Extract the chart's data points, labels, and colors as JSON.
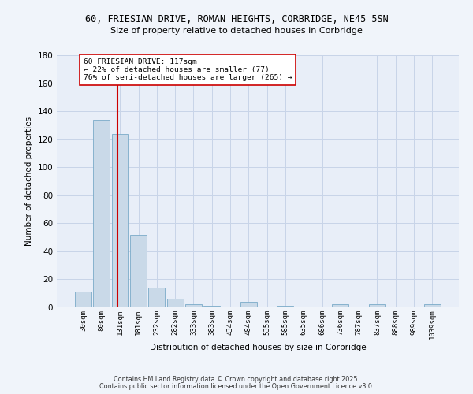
{
  "title_line1": "60, FRIESIAN DRIVE, ROMAN HEIGHTS, CORBRIDGE, NE45 5SN",
  "title_line2": "Size of property relative to detached houses in Corbridge",
  "xlabel": "Distribution of detached houses by size in Corbridge",
  "ylabel": "Number of detached properties",
  "bar_labels": [
    "30sqm",
    "80sqm",
    "131sqm",
    "181sqm",
    "232sqm",
    "282sqm",
    "333sqm",
    "383sqm",
    "434sqm",
    "484sqm",
    "535sqm",
    "585sqm",
    "635sqm",
    "686sqm",
    "736sqm",
    "787sqm",
    "837sqm",
    "888sqm",
    "989sqm",
    "1039sqm"
  ],
  "bar_values": [
    11,
    134,
    124,
    52,
    14,
    6,
    2,
    1,
    0,
    4,
    0,
    1,
    0,
    0,
    2,
    0,
    2,
    0,
    0,
    2
  ],
  "bar_color": "#c9d9e8",
  "bar_edge_color": "#7aaac8",
  "vline_x": 1.87,
  "vline_color": "#cc0000",
  "annotation_text": "60 FRIESIAN DRIVE: 117sqm\n← 22% of detached houses are smaller (77)\n76% of semi-detached houses are larger (265) →",
  "annotation_box_color": "#ffffff",
  "annotation_box_edge_color": "#cc0000",
  "ylim": [
    0,
    180
  ],
  "yticks": [
    0,
    20,
    40,
    60,
    80,
    100,
    120,
    140,
    160,
    180
  ],
  "grid_color": "#c8d4e8",
  "background_color": "#e8eef8",
  "footer_line1": "Contains HM Land Registry data © Crown copyright and database right 2025.",
  "footer_line2": "Contains public sector information licensed under the Open Government Licence v3.0."
}
